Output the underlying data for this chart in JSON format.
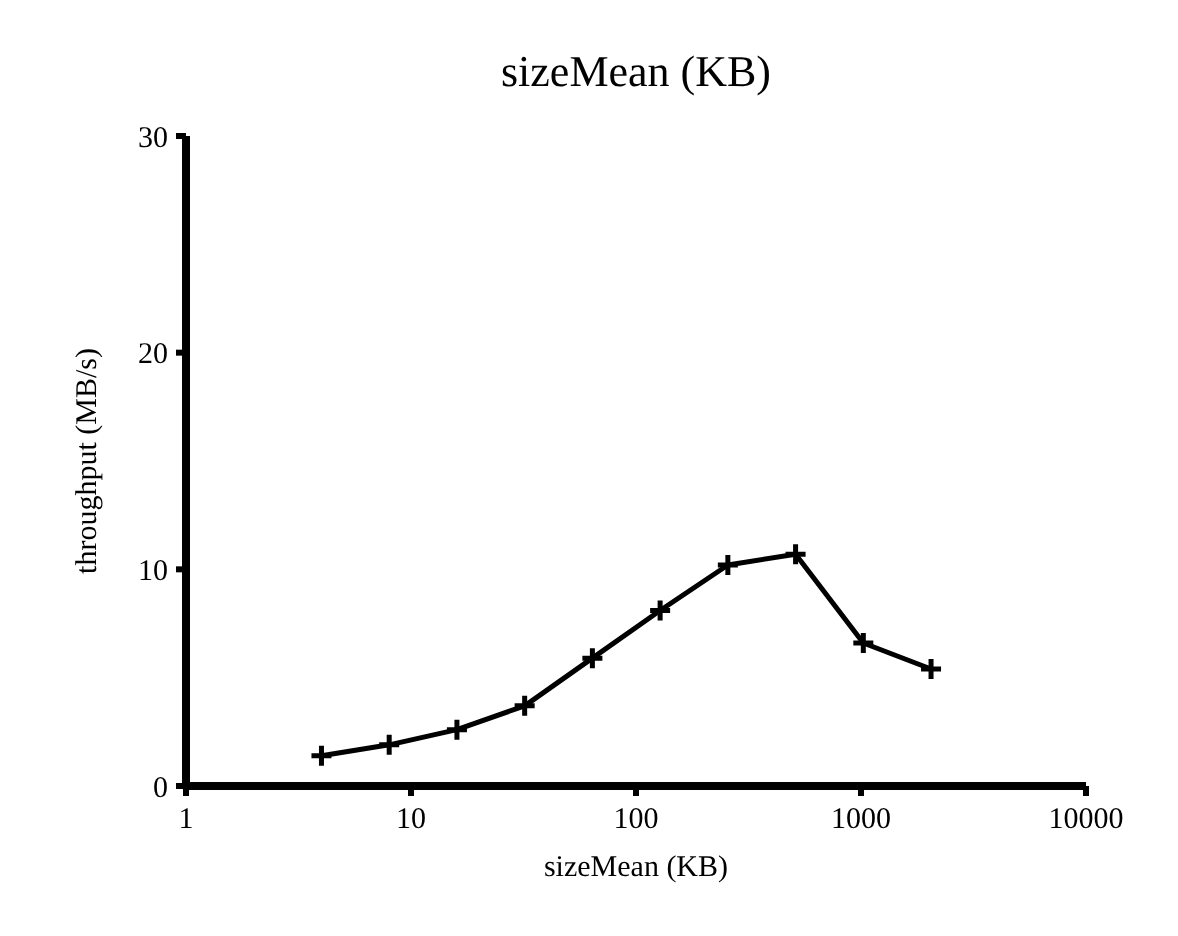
{
  "chart_data": {
    "type": "line",
    "title": "sizeMean (KB)",
    "xlabel": "sizeMean (KB)",
    "ylabel": "throughput (MB/s)",
    "log": "x",
    "xlim": [
      1,
      10000
    ],
    "xticks": [
      1,
      10,
      100,
      1000,
      10000
    ],
    "ylim": [
      0,
      30
    ],
    "yticks": [
      0,
      10,
      20,
      30
    ],
    "marker": "cross",
    "line_style": "solid",
    "x": [
      4,
      8,
      16,
      32,
      64,
      128,
      256,
      512,
      1024,
      2048
    ],
    "series": [
      {
        "color": "#000000",
        "values": [
          1.4,
          1.9,
          2.6,
          3.7,
          5.9,
          8.1,
          10.2,
          10.7,
          6.6,
          5.4
        ]
      }
    ]
  }
}
